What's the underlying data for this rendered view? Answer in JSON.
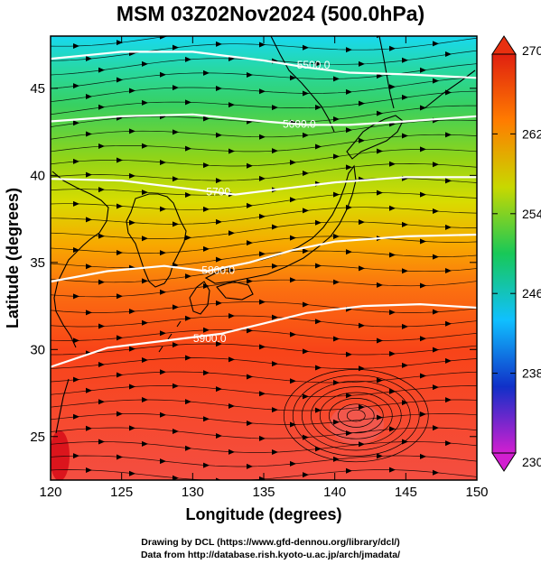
{
  "title": "MSM 03Z02Nov2024 (500.0hPa)",
  "credits": {
    "line1": "Drawing by DCL (https://www.gfd-dennou.org/library/dcl/)",
    "line2": "Data from http://database.rish.kyoto-u.ac.jp/arch/jmadata/"
  },
  "chart_data": {
    "type": "heatmap",
    "xlabel": "Longitude (degrees)",
    "ylabel": "Latitude  (degrees)",
    "xlim": [
      120,
      150
    ],
    "ylim": [
      22.5,
      48
    ],
    "x_ticks": [
      120,
      125,
      130,
      135,
      140,
      145,
      150
    ],
    "y_ticks": [
      25,
      30,
      35,
      40,
      45
    ],
    "colorbar": {
      "min": 230,
      "max": 270,
      "ticks": [
        270,
        262,
        254,
        246,
        238,
        230
      ],
      "palette": [
        "#d21fd0",
        "#1030c8",
        "#10c0ff",
        "#18c858",
        "#c8d800",
        "#ff7c00",
        "#e02010"
      ]
    },
    "field_color_by_lat": [
      {
        "lat": 48,
        "color": "#18d8f0"
      },
      {
        "lat": 46,
        "color": "#28d8a0"
      },
      {
        "lat": 44,
        "color": "#38d060"
      },
      {
        "lat": 41,
        "color": "#90d418"
      },
      {
        "lat": 38.5,
        "color": "#d8dc00"
      },
      {
        "lat": 36,
        "color": "#f8a800"
      },
      {
        "lat": 33.5,
        "color": "#fb7010"
      },
      {
        "lat": 30,
        "color": "#f84418"
      },
      {
        "lat": 22.5,
        "color": "#f44e42"
      }
    ],
    "geopotential_contours": [
      {
        "label": "5500.0",
        "points": [
          [
            120,
            46.7
          ],
          [
            125,
            47.1
          ],
          [
            130,
            47.1
          ],
          [
            135,
            46.6
          ],
          [
            138,
            46.2
          ],
          [
            141,
            45.9
          ],
          [
            145,
            45.8
          ],
          [
            150,
            45.6
          ]
        ],
        "label_at": [
          138.5,
          46.4
        ]
      },
      {
        "label": "5600.0",
        "points": [
          [
            120,
            43.1
          ],
          [
            125,
            43.4
          ],
          [
            130,
            43.5
          ],
          [
            135,
            43.1
          ],
          [
            138,
            42.9
          ],
          [
            141,
            42.9
          ],
          [
            145,
            43.1
          ],
          [
            150,
            43.4
          ]
        ],
        "label_at": [
          137.5,
          43.0
        ]
      },
      {
        "label": "5700",
        "points": [
          [
            120,
            39.8
          ],
          [
            125,
            39.7
          ],
          [
            130,
            39.2
          ],
          [
            133,
            38.9
          ],
          [
            136,
            39.2
          ],
          [
            140,
            39.6
          ],
          [
            145,
            39.9
          ],
          [
            150,
            39.9
          ]
        ],
        "label_at": [
          131.8,
          39.1
        ]
      },
      {
        "label": "5800.0",
        "points": [
          [
            120,
            33.9
          ],
          [
            124,
            34.5
          ],
          [
            128,
            34.8
          ],
          [
            131,
            34.5
          ],
          [
            134,
            35.0
          ],
          [
            137,
            35.7
          ],
          [
            140,
            36.2
          ],
          [
            145,
            36.5
          ],
          [
            150,
            36.6
          ]
        ],
        "label_at": [
          131.8,
          34.6
        ]
      },
      {
        "label": "5900.0",
        "points": [
          [
            120,
            29.0
          ],
          [
            124,
            30.1
          ],
          [
            128,
            30.5
          ],
          [
            132,
            30.9
          ],
          [
            135,
            31.5
          ],
          [
            138,
            32.1
          ],
          [
            142,
            32.5
          ],
          [
            146,
            32.6
          ],
          [
            150,
            32.4
          ]
        ],
        "label_at": [
          131.2,
          30.7
        ]
      }
    ],
    "features": {
      "cyclonic_circulation_center": [
        141.5,
        26.2
      ]
    }
  }
}
